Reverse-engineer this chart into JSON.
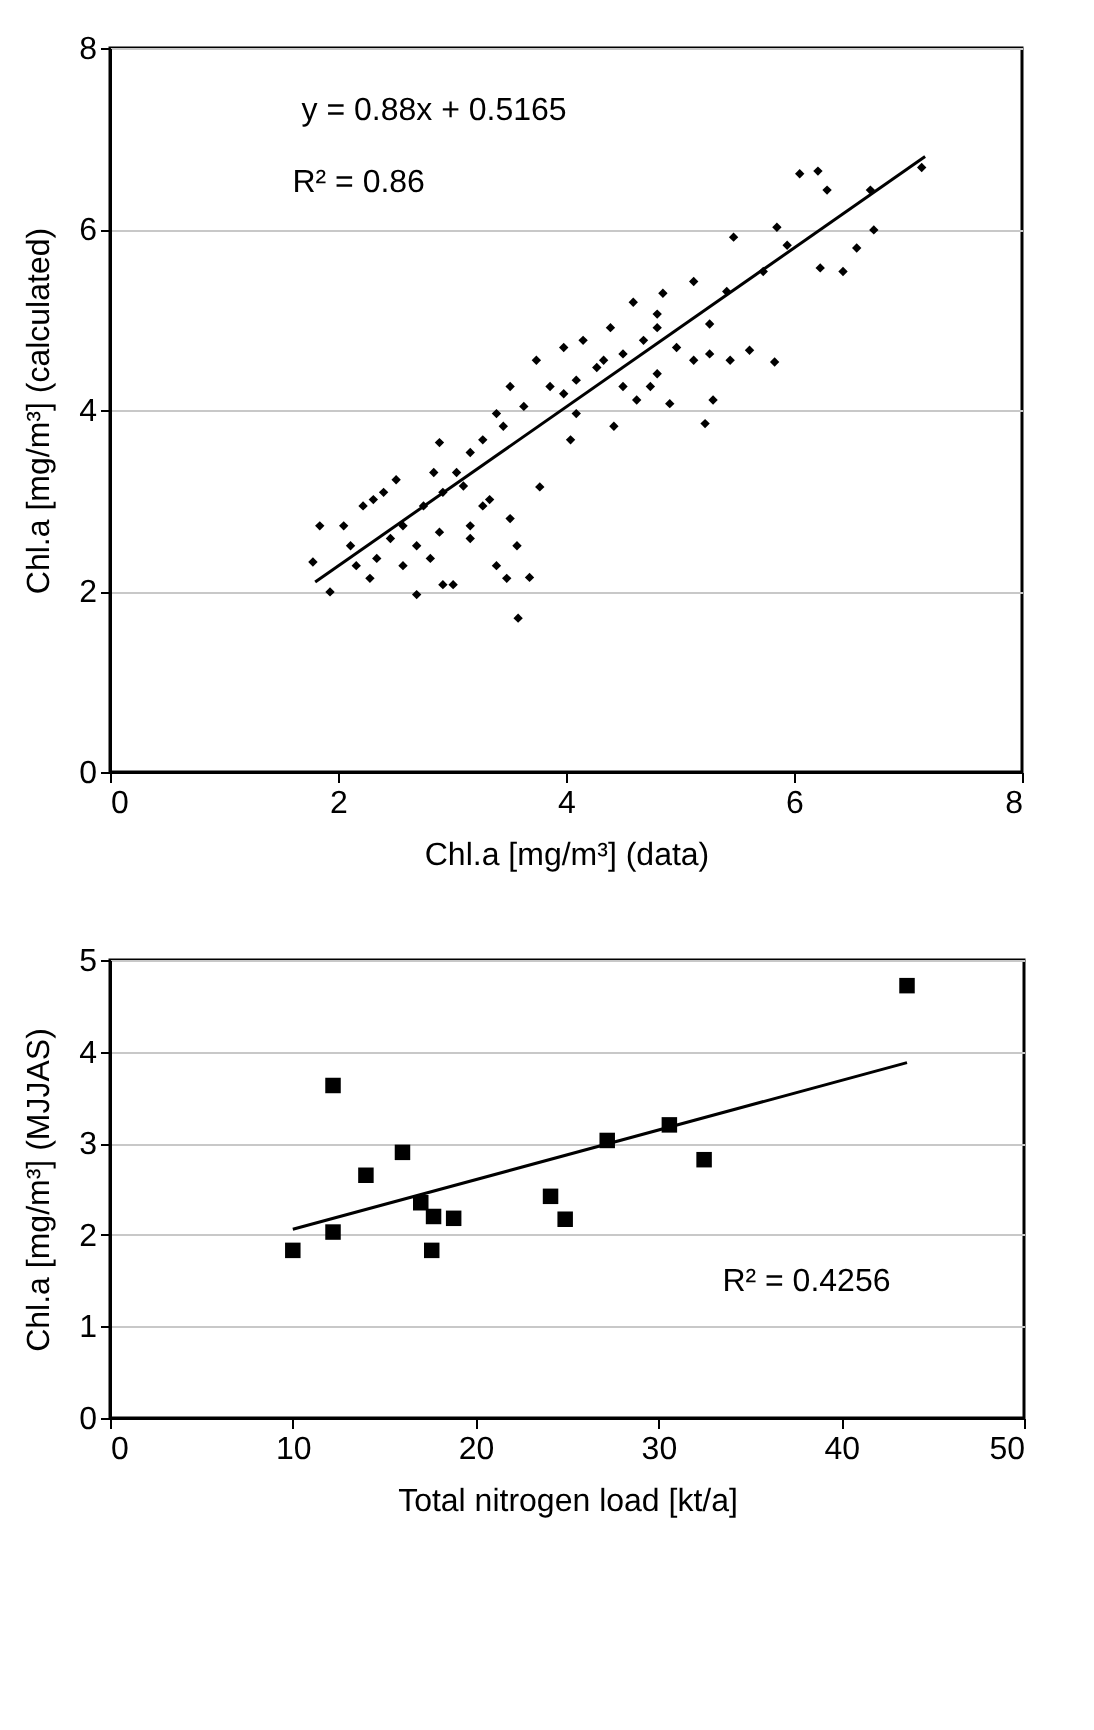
{
  "chart_data": [
    {
      "type": "scatter",
      "xlabel": "Chl.a [mg/m³] (data)",
      "ylabel": "Chl.a [mg/m³] (calculated)",
      "xlim": [
        0,
        8
      ],
      "ylim": [
        0,
        8
      ],
      "xticks": [
        0,
        2,
        4,
        6,
        8
      ],
      "yticks": [
        0,
        2,
        4,
        6,
        8
      ],
      "grid": "y",
      "annotations": [
        "y = 0.88x + 0.5165",
        "R² = 0.86"
      ],
      "series": [
        {
          "color": "#000000",
          "marker": "diamond",
          "x": [
            7.12,
            6.21,
            6.05,
            6.29,
            6.67,
            5.85,
            5.47,
            5.73,
            6.43,
            6.23,
            6.7,
            6.55,
            5.94,
            5.83,
            5.61,
            5.22,
            5.29,
            5.12,
            4.85,
            4.59,
            4.39,
            4.91,
            4.8,
            5.26,
            5.41,
            5.12,
            4.62,
            4.42,
            4.04,
            4.27,
            3.98,
            3.74,
            3.51,
            3.39,
            3.27,
            3.16,
            2.89,
            3.04,
            3.77,
            3.51,
            3.27,
            3.1,
            2.92,
            2.75,
            2.57,
            2.4,
            2.22,
            2.05,
            1.84,
            1.78,
            1.93,
            2.28,
            2.69,
            2.92,
            3.01,
            3.39,
            3.48,
            3.68,
            3.58,
            3.57,
            3.16,
            2.34,
            2.16,
            2.57,
            2.81,
            2.11,
            2.46,
            2.69,
            2.89,
            3.16,
            3.33,
            2.84,
            2.51,
            2.31,
            3.98,
            4.09,
            4.15,
            4.33,
            4.5,
            4.68,
            4.8,
            4.97,
            5.26,
            5.44,
            4.8,
            3.86,
            3.63,
            3.45,
            4.09,
            4.5,
            4.74
          ],
          "values": [
            6.68,
            6.64,
            6.61,
            6.43,
            6.43,
            6.02,
            5.91,
            5.53,
            5.53,
            5.57,
            5.99,
            5.79,
            5.82,
            4.53,
            4.66,
            3.85,
            4.11,
            5.42,
            5.29,
            5.19,
            4.91,
            4.07,
            4.4,
            4.95,
            5.31,
            4.55,
            4.11,
            3.82,
            3.67,
            4.47,
            4.69,
            4.55,
            4.26,
            3.96,
            3.67,
            3.53,
            3.64,
            3.31,
            3.15,
            2.8,
            2.94,
            3.16,
            3.09,
            2.94,
            2.72,
            3.09,
            2.94,
            2.72,
            2.72,
            2.32,
            1.99,
            2.14,
            1.96,
            2.07,
            2.07,
            2.28,
            2.14,
            2.15,
            1.7,
            2.5,
            2.58,
            2.36,
            2.28,
            2.28,
            2.36,
            2.5,
            2.58,
            2.5,
            2.65,
            2.72,
            3.01,
            3.31,
            3.23,
            3.01,
            4.18,
            4.33,
            4.77,
            4.55,
            4.62,
            4.77,
            4.91,
            4.69,
            4.62,
            4.55,
            5.06,
            4.26,
            4.04,
            3.82,
            3.96,
            4.26,
            4.26
          ]
        },
        {
          "type": "line",
          "color": "#000000",
          "line_style": "solid",
          "marker": "none",
          "x": [
            1.8,
            7.15
          ],
          "values": [
            2.1,
            6.8
          ]
        }
      ]
    },
    {
      "type": "scatter",
      "xlabel": "Total nitrogen load [kt/a]",
      "ylabel": "Chl.a [mg/m³] (MJJAS)",
      "xlim": [
        0,
        50
      ],
      "ylim": [
        0,
        5
      ],
      "xticks": [
        0,
        10,
        20,
        30,
        40,
        50
      ],
      "yticks": [
        0,
        1,
        2,
        3,
        4,
        5
      ],
      "grid": "y",
      "annotations": [
        "R² = 0.4256"
      ],
      "series": [
        {
          "color": "#000000",
          "marker": "square",
          "x": [
            10,
            12.2,
            12.2,
            14,
            16,
            17,
            17.7,
            18.8,
            17.6,
            24.1,
            24.9,
            27.2,
            30.6,
            32.5,
            43.6
          ],
          "values": [
            1.83,
            3.63,
            2.03,
            2.65,
            2.9,
            2.35,
            2.2,
            2.18,
            1.83,
            2.42,
            2.17,
            3.03,
            3.2,
            2.82,
            4.72
          ]
        },
        {
          "type": "line",
          "color": "#000000",
          "line_style": "solid",
          "marker": "none",
          "x": [
            10,
            43.6
          ],
          "values": [
            2.06,
            3.88
          ]
        }
      ]
    }
  ]
}
